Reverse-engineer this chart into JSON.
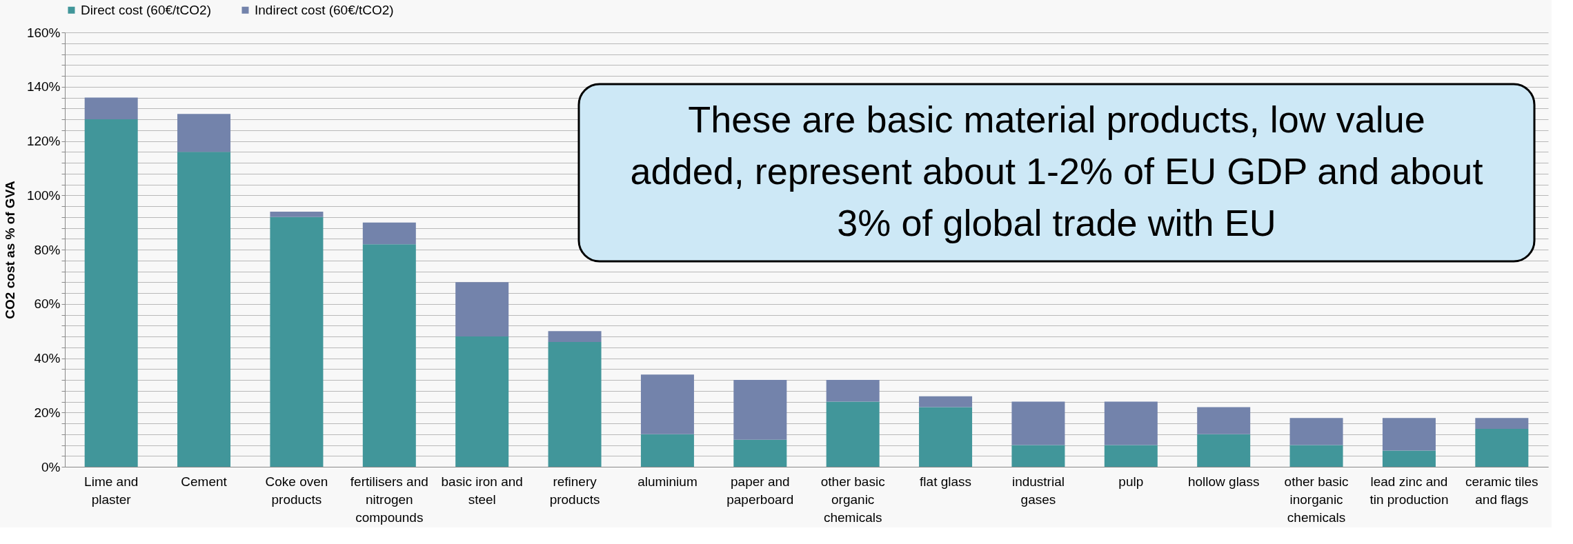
{
  "chart_data": {
    "type": "bar",
    "stacked": true,
    "ylabel": "CO2 cost as % of GVA",
    "categories": [
      "Lime and plaster",
      "Cement",
      "Coke oven products",
      "fertilisers and nitrogen compounds",
      "basic iron and steel",
      "refinery products",
      "aluminium",
      "paper and paperboard",
      "other basic organic chemicals",
      "flat glass",
      "industrial gases",
      "pulp",
      "hollow glass",
      "other basic inorganic chemicals",
      "lead zinc and tin production",
      "ceramic tiles and flags"
    ],
    "series": [
      {
        "name": "Direct cost (60€/tCO2)",
        "color": "#41969a",
        "values": [
          128,
          116,
          92,
          82,
          48,
          46,
          12,
          10,
          24,
          22,
          8,
          8,
          12,
          8,
          6,
          14
        ]
      },
      {
        "name": "Indirect cost (60€/tCO2)",
        "color": "#7383ab",
        "values": [
          8,
          14,
          2,
          8,
          20,
          4,
          22,
          22,
          8,
          4,
          16,
          16,
          10,
          10,
          12,
          4
        ]
      }
    ],
    "ylim": [
      0,
      160
    ],
    "yticks": [
      {
        "value": 0,
        "label": "0%"
      },
      {
        "value": 4,
        "label": null
      },
      {
        "value": 8,
        "label": null
      },
      {
        "value": 12,
        "label": null
      },
      {
        "value": 16,
        "label": null
      },
      {
        "value": 20,
        "label": "20%"
      },
      {
        "value": 24,
        "label": null
      },
      {
        "value": 28,
        "label": null
      },
      {
        "value": 32,
        "label": null
      },
      {
        "value": 36,
        "label": null
      },
      {
        "value": 40,
        "label": "40%"
      },
      {
        "value": 44,
        "label": null
      },
      {
        "value": 48,
        "label": null
      },
      {
        "value": 52,
        "label": null
      },
      {
        "value": 56,
        "label": null
      },
      {
        "value": 60,
        "label": "60%"
      },
      {
        "value": 64,
        "label": null
      },
      {
        "value": 68,
        "label": null
      },
      {
        "value": 72,
        "label": null
      },
      {
        "value": 76,
        "label": null
      },
      {
        "value": 80,
        "label": "80%"
      },
      {
        "value": 84,
        "label": null
      },
      {
        "value": 88,
        "label": null
      },
      {
        "value": 92,
        "label": null
      },
      {
        "value": 96,
        "label": null
      },
      {
        "value": 100,
        "label": "100%"
      },
      {
        "value": 104,
        "label": null
      },
      {
        "value": 108,
        "label": null
      },
      {
        "value": 112,
        "label": null
      },
      {
        "value": 116,
        "label": null
      },
      {
        "value": 120,
        "label": "120%"
      },
      {
        "value": 124,
        "label": null
      },
      {
        "value": 128,
        "label": null
      },
      {
        "value": 132,
        "label": null
      },
      {
        "value": 136,
        "label": null
      },
      {
        "value": 140,
        "label": "140%"
      },
      {
        "value": 144,
        "label": null
      },
      {
        "value": 148,
        "label": null
      },
      {
        "value": 152,
        "label": null
      },
      {
        "value": 156,
        "label": null
      },
      {
        "value": 160,
        "label": "160%"
      }
    ],
    "grid": "y",
    "legend": "top",
    "annotations": [
      "These are basic material products, low value added, represent about 1-2% of EU GDP and about 3% of global trade with EU"
    ]
  }
}
